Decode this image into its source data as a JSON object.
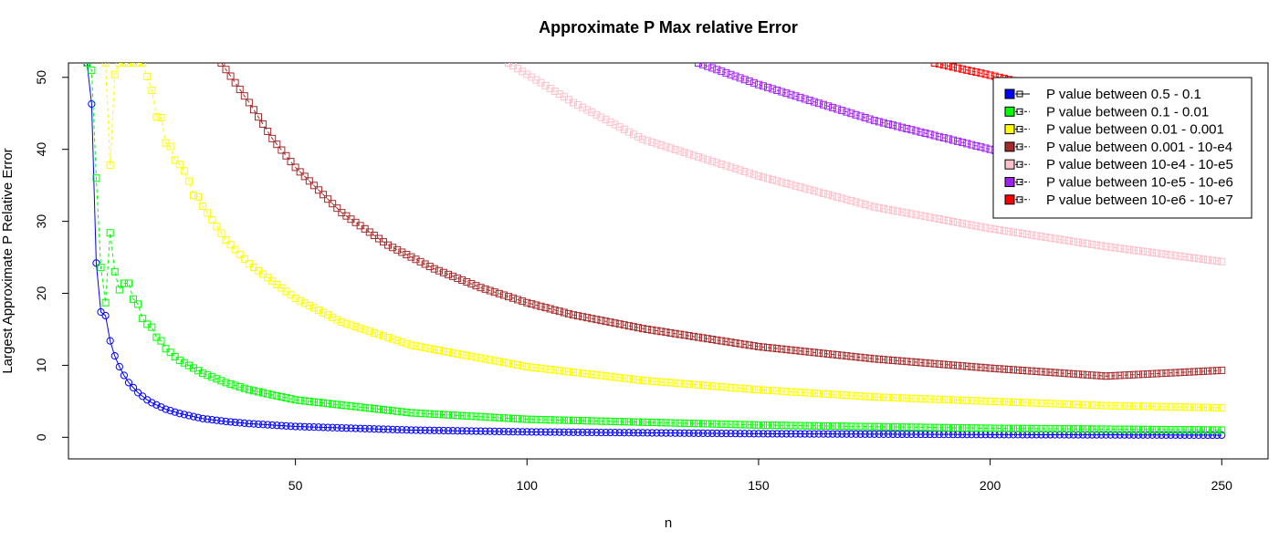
{
  "chart_data": {
    "type": "line",
    "title": "Approximate P Max relative Error",
    "xlabel": "n",
    "ylabel": "Largest Approximate P Relative Error",
    "xlim": [
      1,
      260
    ],
    "ylim": [
      -3,
      52
    ],
    "xticks": [
      50,
      100,
      150,
      200,
      250
    ],
    "yticks": [
      0,
      10,
      20,
      30,
      40,
      50
    ],
    "legend_position": "top-right",
    "series": [
      {
        "name": "P value between 0.5 - 0.1",
        "color": "#0000ff",
        "marker": "circle",
        "line": "solid",
        "points": [
          [
            5,
            52
          ],
          [
            6,
            46.3
          ],
          [
            7,
            24.2
          ],
          [
            8,
            17.4
          ],
          [
            9,
            16.9
          ],
          [
            10,
            13.4
          ],
          [
            11,
            11.3
          ],
          [
            12,
            9.8
          ],
          [
            13,
            8.6
          ],
          [
            14,
            7.6
          ],
          [
            15,
            6.9
          ],
          [
            16,
            6.2
          ],
          [
            17,
            5.7
          ],
          [
            18,
            5.2
          ],
          [
            19,
            4.8
          ],
          [
            20,
            4.5
          ],
          [
            21,
            4.2
          ],
          [
            22,
            3.9
          ],
          [
            23,
            3.7
          ],
          [
            24,
            3.5
          ],
          [
            25,
            3.3
          ],
          [
            30,
            2.6
          ],
          [
            35,
            2.2
          ],
          [
            40,
            1.9
          ],
          [
            50,
            1.5
          ],
          [
            75,
            1.0
          ],
          [
            100,
            0.75
          ],
          [
            150,
            0.5
          ],
          [
            200,
            0.38
          ],
          [
            250,
            0.3
          ]
        ]
      },
      {
        "name": "P value between 0.1 - 0.01",
        "color": "#00ff00",
        "marker": "square",
        "line": "dashed",
        "points": [
          [
            5,
            52
          ],
          [
            6,
            51.0
          ],
          [
            7,
            36.0
          ],
          [
            8,
            23.6
          ],
          [
            9,
            18.7
          ],
          [
            10,
            28.4
          ],
          [
            11,
            23.0
          ],
          [
            12,
            20.5
          ],
          [
            13,
            21.4
          ],
          [
            14,
            21.4
          ],
          [
            15,
            19.2
          ],
          [
            16,
            18.5
          ],
          [
            17,
            16.5
          ],
          [
            18,
            15.7
          ],
          [
            19,
            15.3
          ],
          [
            20,
            13.9
          ],
          [
            21,
            13.4
          ],
          [
            22,
            12.3
          ],
          [
            23,
            11.8
          ],
          [
            24,
            11.2
          ],
          [
            25,
            10.7
          ],
          [
            30,
            8.9
          ],
          [
            35,
            7.6
          ],
          [
            40,
            6.6
          ],
          [
            50,
            5.2
          ],
          [
            75,
            3.4
          ],
          [
            100,
            2.5
          ],
          [
            150,
            1.7
          ],
          [
            200,
            1.25
          ],
          [
            250,
            1.0
          ]
        ]
      },
      {
        "name": "P value between 0.01 - 0.001",
        "color": "#ffff00",
        "marker": "square",
        "line": "dashed",
        "points": [
          [
            9,
            52
          ],
          [
            10,
            37.8
          ],
          [
            11,
            50.4
          ],
          [
            12,
            52
          ],
          [
            17,
            52
          ],
          [
            18,
            50.1
          ],
          [
            19,
            48.2
          ],
          [
            20,
            44.5
          ],
          [
            21,
            44.4
          ],
          [
            22,
            40.9
          ],
          [
            23,
            40.4
          ],
          [
            24,
            38.5
          ],
          [
            25,
            37.9
          ],
          [
            26,
            37.0
          ],
          [
            27,
            35.6
          ],
          [
            28,
            33.6
          ],
          [
            29,
            33.4
          ],
          [
            30,
            32.1
          ],
          [
            35,
            27.4
          ],
          [
            40,
            24.1
          ],
          [
            50,
            19.3
          ],
          [
            60,
            16.0
          ],
          [
            75,
            12.8
          ],
          [
            100,
            9.8
          ],
          [
            125,
            7.9
          ],
          [
            150,
            6.6
          ],
          [
            175,
            5.6
          ],
          [
            200,
            5.0
          ],
          [
            225,
            4.4
          ],
          [
            250,
            4.1
          ]
        ]
      },
      {
        "name": "P value between 0.001 - 10-e4",
        "color": "#a52a2a",
        "marker": "square",
        "line": "dashed",
        "points": [
          [
            34,
            52
          ],
          [
            40,
            46.5
          ],
          [
            45,
            41.5
          ],
          [
            50,
            37.5
          ],
          [
            60,
            31.2
          ],
          [
            70,
            26.7
          ],
          [
            80,
            23.4
          ],
          [
            90,
            20.8
          ],
          [
            100,
            18.7
          ],
          [
            110,
            17.0
          ],
          [
            125,
            15.1
          ],
          [
            150,
            12.6
          ],
          [
            175,
            10.9
          ],
          [
            200,
            9.6
          ],
          [
            225,
            8.5
          ],
          [
            250,
            9.3
          ]
        ]
      },
      {
        "name": "P value between 10-e4 - 10-e5",
        "color": "#ffc0cb",
        "marker": "square",
        "line": "dashed",
        "points": [
          [
            96,
            52
          ],
          [
            110,
            46.5
          ],
          [
            125,
            41.4
          ],
          [
            150,
            36.3
          ],
          [
            175,
            32.0
          ],
          [
            200,
            29.0
          ],
          [
            225,
            26.5
          ],
          [
            250,
            24.4
          ]
        ]
      },
      {
        "name": "P value between 10-e5 - 10-e6",
        "color": "#a020f0",
        "marker": "square",
        "line": "dashed",
        "points": [
          [
            137,
            52
          ],
          [
            150,
            49.0
          ],
          [
            175,
            44.0
          ],
          [
            200,
            40.0
          ],
          [
            225,
            36.6
          ],
          [
            250,
            33.6
          ]
        ]
      },
      {
        "name": "P value between 10-e6 - 10-e7",
        "color": "#ff0000",
        "marker": "square",
        "line": "dashed",
        "points": [
          [
            188,
            52
          ],
          [
            200,
            50.3
          ],
          [
            225,
            46.5
          ],
          [
            250,
            42.9
          ]
        ]
      }
    ]
  }
}
